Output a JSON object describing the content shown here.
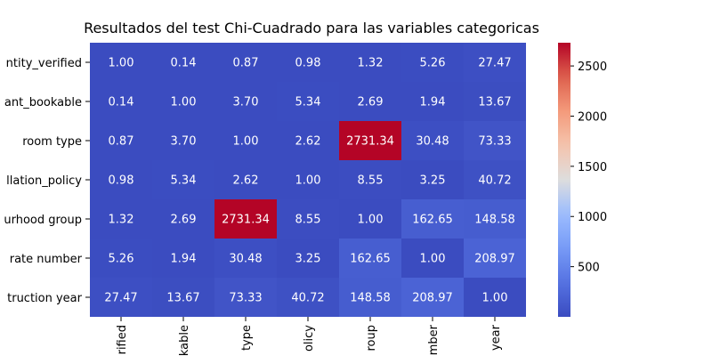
{
  "chart_data": {
    "type": "heatmap",
    "title": "Resultados del test Chi-Cuadrado para las variables categoricas",
    "row_labels": [
      "ntity_verified",
      "ant_bookable",
      "room type",
      "llation_policy",
      "urhood group",
      "rate number",
      "truction year"
    ],
    "col_labels": [
      "rified",
      "kable",
      "type",
      "olicy",
      "roup",
      "mber",
      "year"
    ],
    "values": [
      [
        1.0,
        0.14,
        0.87,
        0.98,
        1.32,
        5.26,
        27.47
      ],
      [
        0.14,
        1.0,
        3.7,
        5.34,
        2.69,
        1.94,
        13.67
      ],
      [
        0.87,
        3.7,
        1.0,
        2.62,
        2731.34,
        30.48,
        73.33
      ],
      [
        0.98,
        5.34,
        2.62,
        1.0,
        8.55,
        3.25,
        40.72
      ],
      [
        1.32,
        2.69,
        2731.34,
        8.55,
        1.0,
        162.65,
        148.58
      ],
      [
        5.26,
        1.94,
        30.48,
        3.25,
        162.65,
        1.0,
        208.97
      ],
      [
        27.47,
        13.67,
        73.33,
        40.72,
        148.58,
        208.97,
        1.0
      ]
    ],
    "value_format": "%.2f",
    "colormap": "coolwarm",
    "colorbar": {
      "range": [
        0.14,
        2731.34
      ],
      "ticks": [
        500,
        1000,
        1500,
        2000,
        2500
      ],
      "tick_labels": [
        "500",
        "1000",
        "1500",
        "2000",
        "2500"
      ]
    },
    "colors": {
      "low": "#3b4cc0",
      "mid": "#dddddd",
      "high": "#b40426"
    }
  }
}
